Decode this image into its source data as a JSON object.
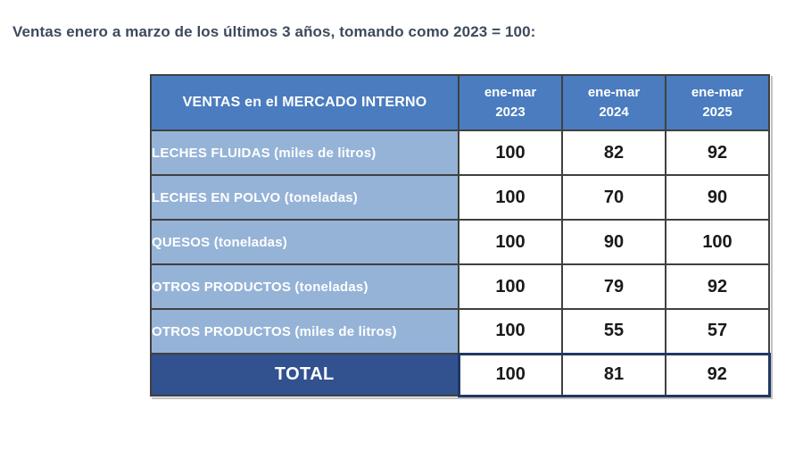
{
  "page": {
    "title": "Ventas enero a marzo de los últimos 3 años, tomando como 2023 = 100:"
  },
  "colors": {
    "title_text": "#3d4a5c",
    "header_bg": "#4a7cbf",
    "row_label_bg": "#95b3d7",
    "total_bg": "#31518f",
    "header_text": "#ffffff",
    "value_text": "#1a1a1a",
    "inner_border": "#404040",
    "total_outline": "#1f3864"
  },
  "table": {
    "corner_header": "VENTAS en el MERCADO INTERNO",
    "col_headers": [
      {
        "line1": "ene-mar",
        "line2": "2023"
      },
      {
        "line1": "ene-mar",
        "line2": "2024"
      },
      {
        "line1": "ene-mar",
        "line2": "2025"
      }
    ],
    "rows": [
      {
        "label": "LECHES FLUIDAS (miles de litros)",
        "values": [
          "100",
          "82",
          "92"
        ]
      },
      {
        "label": "LECHES EN POLVO (toneladas)",
        "values": [
          "100",
          "70",
          "90"
        ]
      },
      {
        "label": "QUESOS (toneladas)",
        "values": [
          "100",
          "90",
          "100"
        ]
      },
      {
        "label": "OTROS PRODUCTOS (toneladas)",
        "values": [
          "100",
          "79",
          "92"
        ]
      },
      {
        "label": "OTROS PRODUCTOS (miles de litros)",
        "values": [
          "100",
          "55",
          "57"
        ]
      }
    ],
    "total": {
      "label": "TOTAL",
      "values": [
        "100",
        "81",
        "92"
      ]
    }
  },
  "chart_data": {
    "type": "table",
    "title": "Ventas enero a marzo de los últimos 3 años, tomando como 2023 = 100",
    "columns": [
      "VENTAS en el MERCADO INTERNO",
      "ene-mar 2023",
      "ene-mar 2024",
      "ene-mar 2025"
    ],
    "rows": [
      [
        "LECHES FLUIDAS (miles de litros)",
        100,
        82,
        92
      ],
      [
        "LECHES EN POLVO (toneladas)",
        100,
        70,
        90
      ],
      [
        "QUESOS (toneladas)",
        100,
        90,
        100
      ],
      [
        "OTROS PRODUCTOS (toneladas)",
        100,
        79,
        92
      ],
      [
        "OTROS PRODUCTOS (miles de litros)",
        100,
        55,
        57
      ],
      [
        "TOTAL",
        100,
        81,
        92
      ]
    ],
    "base_index": "2023 = 100"
  }
}
